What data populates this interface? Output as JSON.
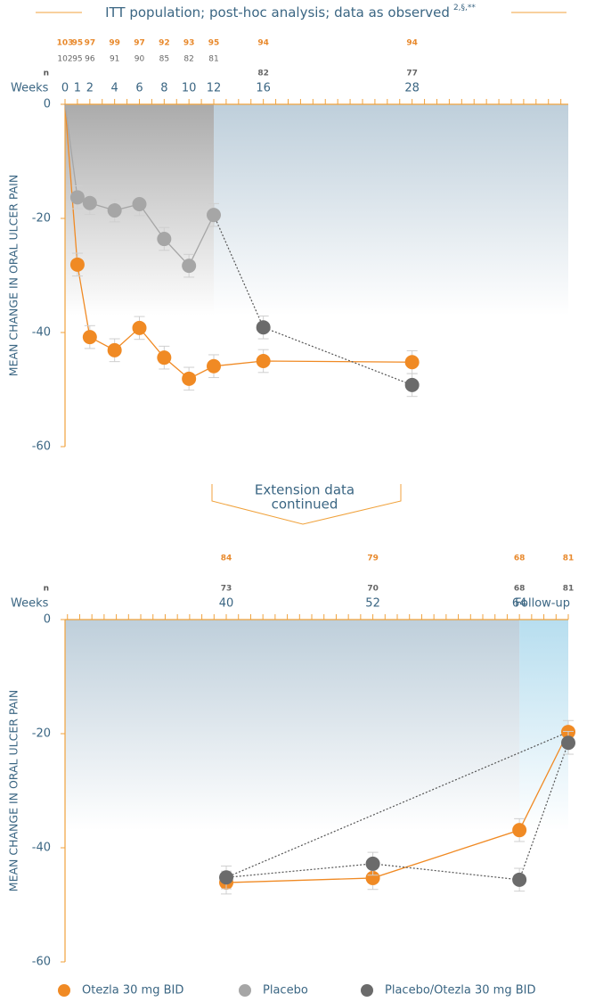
{
  "chart_data": [
    {
      "type": "line",
      "title": "ITT population; post-hoc analysis; data as observed",
      "title_superscript": "2,§,**",
      "x_label": "Weeks",
      "n_label": "n",
      "y_label": "MEAN CHANGE IN ORAL ULCER PAIN",
      "xlim": [
        0,
        40.6
      ],
      "ylim": [
        -60,
        0
      ],
      "yticks": [
        -60,
        -40,
        -20,
        0
      ],
      "xticks": [
        0,
        1,
        2,
        4,
        6,
        8,
        10,
        12,
        16,
        28
      ],
      "xtick_step": 1,
      "shading": [
        {
          "x": [
            0,
            12
          ],
          "y": [
            0,
            -37
          ],
          "color": "#8f8f8f"
        },
        {
          "x": [
            12,
            40.6
          ],
          "y": [
            0,
            -37
          ],
          "color": "#a9bfcf"
        }
      ],
      "series": [
        {
          "name": "Otezla 30 mg BID",
          "color": "#f08a24",
          "dash": false,
          "x": [
            0,
            1,
            2,
            4,
            6,
            8,
            10,
            12,
            16,
            28
          ],
          "values": [
            0,
            -28.1,
            -40.8,
            -43.1,
            -39.2,
            -44.4,
            -48.1,
            -45.9,
            -45,
            -45.2
          ],
          "errors": [
            0,
            2,
            2,
            2,
            2,
            2,
            2,
            2,
            2,
            2
          ],
          "n": [
            103,
            95,
            97,
            99,
            97,
            92,
            93,
            95,
            94,
            94
          ]
        },
        {
          "name": "Placebo",
          "color": "#a6a6a6",
          "dash": false,
          "x": [
            0,
            1,
            2,
            4,
            6,
            8,
            10,
            12
          ],
          "values": [
            0,
            -16.3,
            -17.3,
            -18.6,
            -17.5,
            -23.6,
            -28.3,
            -19.4
          ],
          "errors": [
            0,
            2,
            2,
            2,
            2,
            2,
            2,
            2
          ],
          "n": [
            102,
            95,
            96,
            91,
            90,
            85,
            82,
            81
          ]
        },
        {
          "name": "Placebo/Otezla 30 mg BID",
          "color": "#6b6b6b",
          "dash": true,
          "x": [
            16,
            28
          ],
          "values": [
            -39.1,
            -49.2
          ],
          "errors": [
            2,
            2
          ],
          "n": [
            82,
            77
          ]
        }
      ]
    },
    {
      "type": "line",
      "annotation": [
        "Extension data",
        "continued"
      ],
      "x_label": "Weeks",
      "n_label": "n",
      "y_label": "MEAN CHANGE IN ORAL ULCER PAIN",
      "xlim": [
        26.8,
        68
      ],
      "ylim": [
        -60,
        0
      ],
      "yticks": [
        -60,
        -40,
        -20,
        0
      ],
      "xticks": [
        40,
        52,
        64,
        {
          "value": 68,
          "label": "Follow-up"
        }
      ],
      "xtick_step": 1,
      "shading": [
        {
          "x": [
            26.8,
            64
          ],
          "y": [
            0,
            -37
          ],
          "color": "#a9bfcf"
        },
        {
          "x": [
            64,
            68
          ],
          "y": [
            0,
            -37
          ],
          "color": "#9fd3ea"
        }
      ],
      "series": [
        {
          "name": "Otezla 30 mg BID",
          "color": "#f08a24",
          "dash": false,
          "x": [
            40,
            52,
            64,
            68
          ],
          "values": [
            -46.1,
            -45.3,
            -36.9,
            -19.7
          ],
          "errors": [
            2,
            2,
            2,
            2
          ],
          "n": [
            84,
            79,
            68,
            81
          ]
        },
        {
          "name": "Placebo/Otezla 30 mg BID",
          "color": "#6b6b6b",
          "dash": true,
          "x": [
            40,
            52,
            64,
            68
          ],
          "values": [
            -45.2,
            -42.8,
            -45.6,
            -21.6
          ],
          "errors": [
            2,
            2,
            2,
            2
          ],
          "n": [
            73,
            70,
            68,
            81
          ]
        }
      ]
    }
  ]
}
